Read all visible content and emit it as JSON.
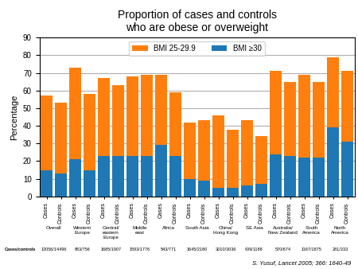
{
  "chart_data": {
    "type": "bar",
    "stacked": true,
    "title": "Proportion of cases and controls\nwho are obese or overweight",
    "y_label": "Percentage",
    "categories": [
      "Cases",
      "Controls",
      "Cases",
      "Controls",
      "Cases",
      "Controls",
      "Cases",
      "Controls",
      "Cases",
      "Controls",
      "Cases",
      "Controls",
      "Cases",
      "Controls",
      "Cases",
      "Controls",
      "Cases",
      "Controls",
      "Cases",
      "Controls",
      "Cases",
      "Controls"
    ],
    "groups": [
      "Overall",
      "Western\nEurope",
      "Central/\neastern\nEurope",
      "Middle\neast",
      "Africa",
      "South Asia",
      "China/\nHong Kong",
      "SE Asia",
      "Australia/\nNew Zealand",
      "South\nAmerica",
      "North\nAmerica"
    ],
    "group_counts_label": "Cases/controls",
    "group_counts": [
      "12056/14496",
      "653/756",
      "1685/1907",
      "1593/1776",
      "543/771",
      "1645/2180",
      "3010/3036",
      "909/1188",
      "570/674",
      "1167/1875",
      "281/333"
    ],
    "series": [
      {
        "name": "BMI ≥30",
        "values": [
          15,
          13,
          21,
          15,
          23,
          23,
          23,
          23,
          29,
          23,
          10,
          9,
          5,
          5,
          6,
          7,
          24,
          23,
          22,
          22,
          39,
          31
        ]
      },
      {
        "name": "BMI 25-29.9",
        "values": [
          42,
          40,
          52,
          43,
          44,
          40,
          45,
          46,
          40,
          36,
          32,
          34,
          41,
          33,
          37,
          27,
          47,
          42,
          47,
          43,
          40,
          40
        ]
      }
    ],
    "ylim": [
      0,
      90
    ],
    "yticks": [
      0,
      10,
      20,
      30,
      40,
      50,
      60,
      70,
      80,
      90
    ],
    "grid": true,
    "legend": "upper center",
    "source": "S. Yusuf, Lancet 2005; 366: 1640-49"
  }
}
